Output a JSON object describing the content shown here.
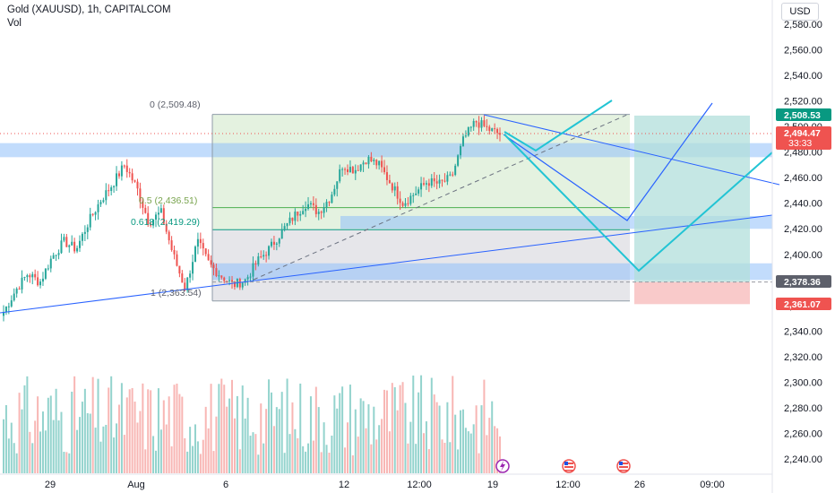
{
  "header": {
    "title": "Gold (XAUUSD), 1h, CAPITALCOM",
    "indicator": "Vol"
  },
  "currency_button": "USD",
  "colors": {
    "up": "#26a69a",
    "down": "#ef5350",
    "fib_green": "#089981",
    "zone_blue": "#90bff9",
    "line_blue": "#2962ff",
    "teal_line": "#22c4d4",
    "target_zone": "#b2dfdb",
    "stop_zone": "#f8c4c4"
  },
  "price_axis": {
    "ticks": [
      "2,580.00",
      "2,560.00",
      "2,540.00",
      "2,520.00",
      "2,500.00",
      "2,480.00",
      "2,460.00",
      "2,440.00",
      "2,420.00",
      "2,400.00",
      "2,380.00",
      "2,360.00",
      "2,340.00",
      "2,320.00",
      "2,300.00",
      "2,280.00",
      "2,260.00",
      "2,240.00"
    ]
  },
  "time_axis": {
    "ticks": [
      "29",
      "Aug",
      "6",
      "12",
      "12:00",
      "19",
      "12:00",
      "26",
      "09:00"
    ]
  },
  "price_tags": {
    "tp": "2,508.53",
    "current": "2,494.47",
    "countdown": "33:33",
    "entry": "2,378.36",
    "sl": "2,361.07"
  },
  "fib_labels": {
    "level_0": "0 (2,509.48)",
    "level_0618": "0.618 (2,419.29)",
    "level_05": "0.5 (2,436.51)",
    "level_1": "1 (2,363.54)"
  },
  "event_markers": [
    {
      "icon": "lightning-icon"
    },
    {
      "icon": "us-flag-icon"
    },
    {
      "icon": "us-flag-icon"
    }
  ],
  "chart_data": {
    "type": "candlestick",
    "symbol": "Gold (XAUUSD)",
    "interval": "1h",
    "ylim": [
      2230,
      2590
    ],
    "fib_levels": [
      {
        "level": 0,
        "price": 2509.48
      },
      {
        "level": 0.5,
        "price": 2436.51
      },
      {
        "level": 0.618,
        "price": 2419.29
      },
      {
        "level": 1,
        "price": 2363.54
      }
    ],
    "last_price": 2494.47,
    "take_profit": 2508.53,
    "entry": 2378.36,
    "stop_loss": 2361.07,
    "approx_close_path": [
      2355,
      2372,
      2385,
      2378,
      2398,
      2410,
      2404,
      2425,
      2442,
      2455,
      2470,
      2452,
      2425,
      2433,
      2400,
      2373,
      2410,
      2392,
      2383,
      2376,
      2380,
      2395,
      2405,
      2418,
      2430,
      2440,
      2433,
      2445,
      2470,
      2466,
      2475,
      2470,
      2455,
      2440,
      2448,
      2457,
      2455,
      2460,
      2490,
      2504,
      2498,
      2494
    ]
  }
}
